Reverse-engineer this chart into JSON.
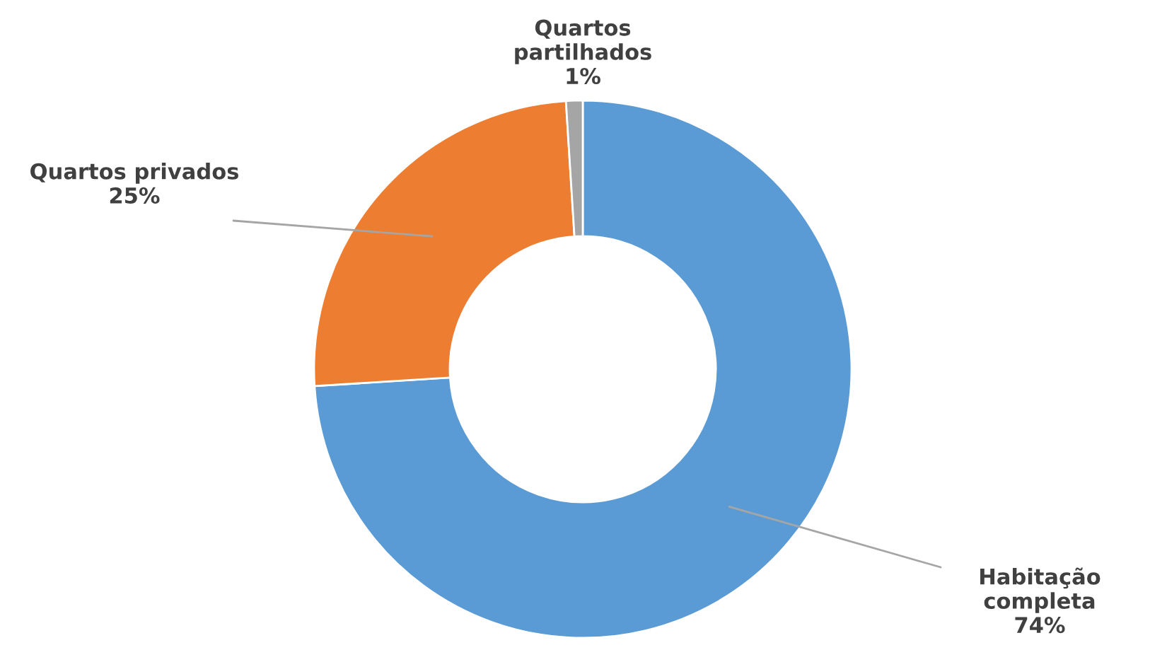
{
  "chart_data": {
    "type": "donut",
    "categories": [
      "Habitação\ncompleta",
      "Quartos privados",
      "Quartos\npartilhados"
    ],
    "values": [
      74,
      25,
      1
    ],
    "value_labels": [
      "74%",
      "25%",
      "1%"
    ],
    "colors": [
      "#5b9bd5",
      "#ed7d31",
      "#a5a5a5"
    ],
    "legend": false
  }
}
